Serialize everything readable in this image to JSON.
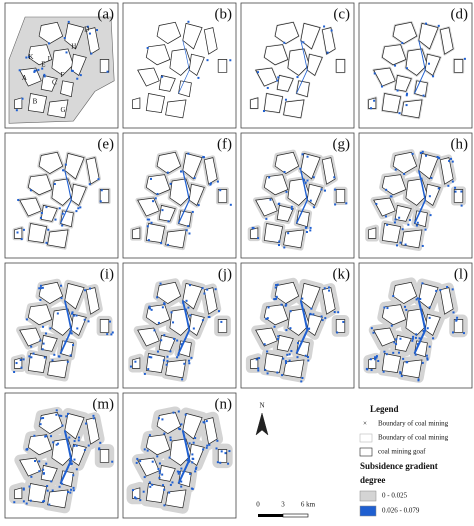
{
  "panels": [
    "(a)",
    "(b)",
    "(c)",
    "(d)",
    "(e)",
    "(f)",
    "(g)",
    "(h)",
    "(i)",
    "(j)",
    "(k)",
    "(l)",
    "(m)",
    "(n)"
  ],
  "panel_a_labels": [
    "D",
    "H",
    "K",
    "E",
    "I",
    "A",
    "F",
    "B",
    "C",
    "G"
  ],
  "north": "N",
  "scale_labels": [
    "0",
    "3",
    "6 km"
  ],
  "legend": {
    "title": "Legend",
    "items": [
      "Boundary of coal mining",
      "Boundary of coal mining",
      "coal mining goaf"
    ],
    "subtitle": [
      "Subsidence gradient",
      "degree"
    ],
    "classes": [
      "0 - 0.025",
      "0.026 - 0.079"
    ]
  }
}
